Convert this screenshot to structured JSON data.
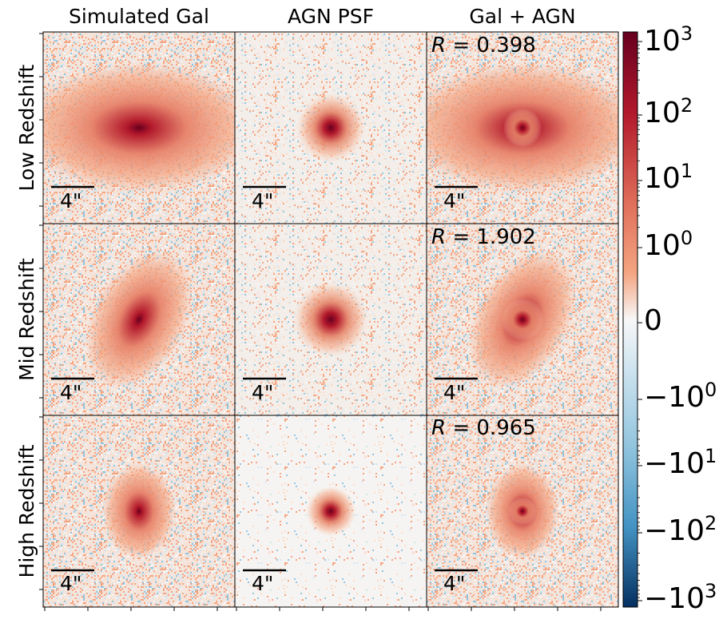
{
  "figure": {
    "column_titles": [
      "Simulated Gal",
      "AGN PSF",
      "Gal + AGN"
    ],
    "row_labels": [
      "Low Redshift",
      "Mid Redshift",
      "High Redshift"
    ],
    "scale_bar_label": "4\"",
    "r_values": [
      {
        "symbol": "R",
        "text": " = 0.398"
      },
      {
        "symbol": "R",
        "text": " = 1.902"
      },
      {
        "symbol": "R",
        "text": " = 0.965"
      }
    ]
  },
  "colorbar": {
    "ticks": [
      {
        "base": "10",
        "exp": "3"
      },
      {
        "base": "10",
        "exp": "2"
      },
      {
        "base": "10",
        "exp": "1"
      },
      {
        "base": "10",
        "exp": "0"
      },
      {
        "base": "0",
        "exp": ""
      },
      {
        "base": "−10",
        "exp": "0"
      },
      {
        "base": "−10",
        "exp": "1"
      },
      {
        "base": "−10",
        "exp": "2"
      },
      {
        "base": "−10",
        "exp": "3"
      }
    ],
    "colormap": "RdBu_r"
  },
  "colors": {
    "dark_red": "#67001f",
    "red": "#b2182b",
    "salmon": "#f4a582",
    "light": "#fddbc7",
    "white": "#f7f7f7",
    "light_blue": "#d1e5f0",
    "blue": "#4393c3",
    "dark_blue": "#053061"
  }
}
